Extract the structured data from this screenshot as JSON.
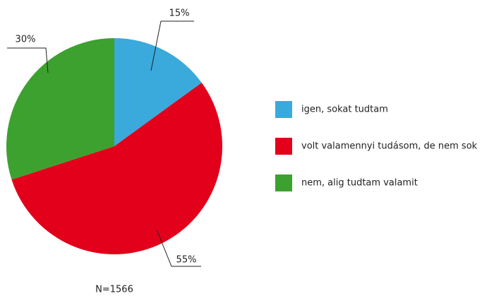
{
  "chart_data": {
    "type": "pie",
    "categories": [
      "igen, sokat tudtam",
      "volt valamennyi tudásom, de nem sok",
      "nem, alig tudtam valamit"
    ],
    "values": [
      15,
      55,
      30
    ],
    "value_labels": [
      "15%",
      "55%",
      "30%"
    ],
    "colors": [
      "#3aa9dc",
      "#e2001a",
      "#3da12f"
    ],
    "note": "N=1566",
    "legend": "right"
  }
}
